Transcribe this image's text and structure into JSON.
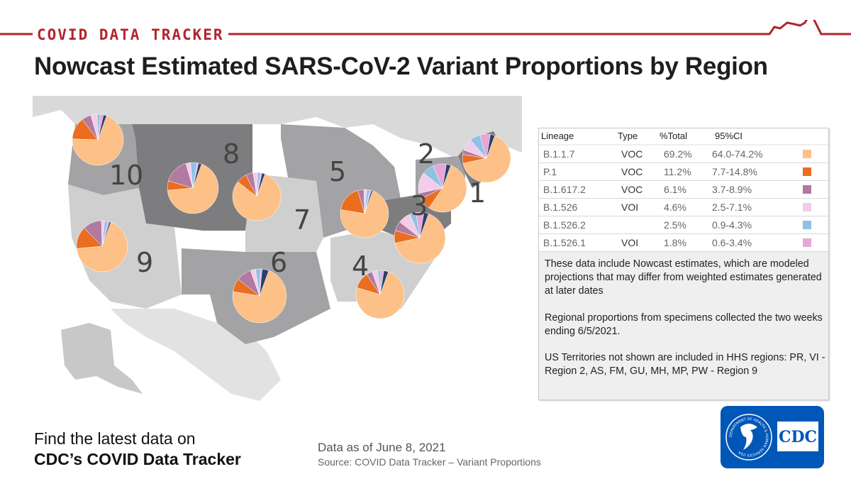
{
  "brand": "COVID DATA TRACKER",
  "title": "Nowcast Estimated SARS-CoV-2 Variant Proportions by Region",
  "colors": {
    "brand_red": "#b2242d",
    "map_dark": "#7d7d80",
    "map_mid": "#a3a3a5",
    "map_light": "#cfcfcf"
  },
  "chart_data": {
    "type": "pie",
    "table": {
      "headers": [
        "Lineage",
        "Type",
        "%Total",
        "95%CI"
      ],
      "rows": [
        {
          "lineage": "B.1.1.7",
          "type": "VOC",
          "total": "69.2%",
          "ci": "64.0-74.2%",
          "color": "#fdc086"
        },
        {
          "lineage": "P.1",
          "type": "VOC",
          "total": "11.2%",
          "ci": "7.7-14.8%",
          "color": "#ea6d20"
        },
        {
          "lineage": "B.1.617.2",
          "type": "VOC",
          "total": "6.1%",
          "ci": "3.7-8.9%",
          "color": "#b07aa1"
        },
        {
          "lineage": "B.1.526",
          "type": "VOI",
          "total": "4.6%",
          "ci": "2.5-7.1%",
          "color": "#f2cde9"
        },
        {
          "lineage": "B.1.526.2",
          "type": "",
          "total": "2.5%",
          "ci": "0.9-4.3%",
          "color": "#8fc1e3"
        },
        {
          "lineage": "B.1.526.1",
          "type": "VOI",
          "total": "1.8%",
          "ci": "0.6-3.4%",
          "color": "#e6a6d6"
        }
      ]
    },
    "regions": [
      {
        "label": "10",
        "values": [
          70,
          14,
          6,
          4,
          2,
          2,
          2
        ]
      },
      {
        "label": "8",
        "values": [
          68,
          6,
          16,
          3,
          4,
          1,
          2
        ]
      },
      {
        "label": "7",
        "values": [
          80,
          7,
          5,
          3,
          2,
          1,
          2
        ]
      },
      {
        "label": "5",
        "values": [
          72,
          18,
          4,
          2,
          2,
          1,
          1
        ]
      },
      {
        "label": "2",
        "values": [
          54,
          8,
          4,
          14,
          8,
          9,
          3
        ]
      },
      {
        "label": "1",
        "values": [
          66,
          6,
          3,
          8,
          7,
          7,
          3
        ]
      },
      {
        "label": "3",
        "values": [
          66,
          8,
          6,
          8,
          4,
          5,
          3
        ]
      },
      {
        "label": "9",
        "values": [
          68,
          14,
          12,
          2,
          2,
          1,
          1
        ]
      },
      {
        "label": "6",
        "values": [
          72,
          8,
          9,
          3,
          3,
          1,
          4
        ]
      },
      {
        "label": "4",
        "values": [
          74,
          11,
          4,
          4,
          2,
          2,
          3
        ]
      }
    ]
  },
  "notes": [
    "These data include Nowcast estimates, which are modeled projections that may differ from weighted estimates generated at later dates",
    "Regional proportions from specimens collected the two weeks ending 6/5/2021.",
    "US Territories not shown are included in HHS regions: PR, VI - Region 2, AS, FM, GU, MH, MP, PW - Region 9"
  ],
  "footer": {
    "find_line1": "Find the latest data on",
    "find_line2": "CDC’s COVID Data Tracker",
    "as_of": "Data as of June 8, 2021",
    "source": "Source: COVID Data Tracker – Variant Proportions"
  },
  "logo": {
    "text": "CDC",
    "seal_text": "DEPARTMENT OF HEALTH & HUMAN SERVICES USA",
    "icon": "hhs-eagle-icon"
  }
}
